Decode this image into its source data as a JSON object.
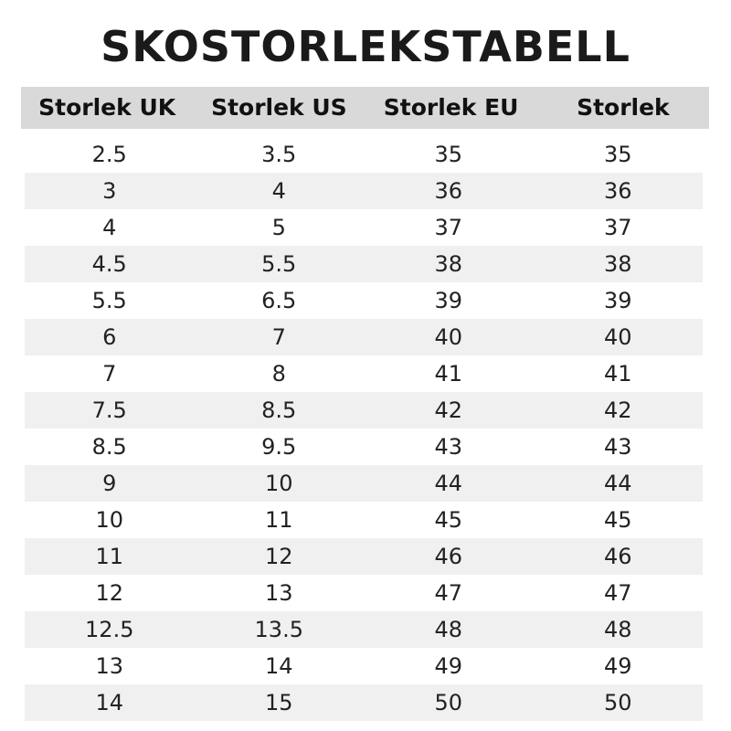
{
  "title": "SKOSTORLEKSTABELL",
  "headers": [
    "Storlek UK",
    "Storlek US",
    "Storlek EU",
    "Storlek"
  ],
  "rows": [
    [
      "2.5",
      "3.5",
      "35",
      "35"
    ],
    [
      "3",
      "4",
      "36",
      "36"
    ],
    [
      "4",
      "5",
      "37",
      "37"
    ],
    [
      "4.5",
      "5.5",
      "38",
      "38"
    ],
    [
      "5.5",
      "6.5",
      "39",
      "39"
    ],
    [
      "6",
      "7",
      "40",
      "40"
    ],
    [
      "7",
      "8",
      "41",
      "41"
    ],
    [
      "7.5",
      "8.5",
      "42",
      "42"
    ],
    [
      "8.5",
      "9.5",
      "43",
      "43"
    ],
    [
      "9",
      "10",
      "44",
      "44"
    ],
    [
      "10",
      "11",
      "45",
      "45"
    ],
    [
      "11",
      "12",
      "46",
      "46"
    ],
    [
      "12",
      "13",
      "47",
      "47"
    ],
    [
      "12.5",
      "13.5",
      "48",
      "48"
    ],
    [
      "13",
      "14",
      "49",
      "49"
    ],
    [
      "14",
      "15",
      "50",
      "50"
    ]
  ],
  "colors": {
    "header_bg": "#d9d9d9",
    "alt_row_bg": "#f0f0f0"
  }
}
